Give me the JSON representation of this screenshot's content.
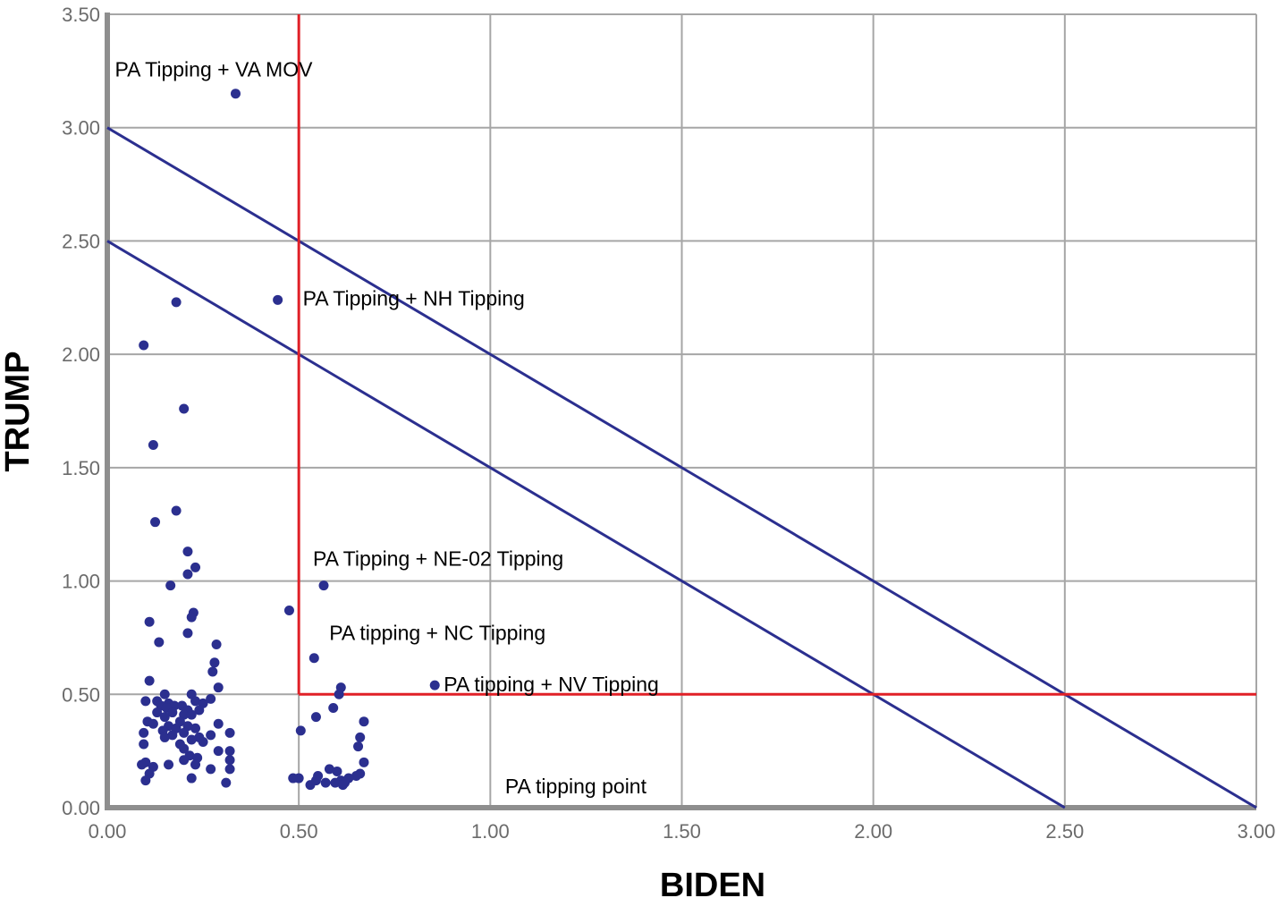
{
  "chart_data": {
    "type": "scatter",
    "xlabel": "BIDEN",
    "ylabel": "TRUMP",
    "xlim": [
      0,
      3
    ],
    "ylim": [
      0,
      3.5
    ],
    "grid": true,
    "x_ticks": [
      "0.00",
      "0.50",
      "1.00",
      "1.50",
      "2.00",
      "2.50",
      "3.00"
    ],
    "y_ticks": [
      "0.00",
      "0.50",
      "1.00",
      "1.50",
      "2.00",
      "2.50",
      "3.00",
      "3.50"
    ],
    "colors": {
      "points": "#2b2f8f",
      "diagonals": "#2b2f8f",
      "thresholds": "#e02027",
      "grid": "#a6a6a6",
      "axis": "#8e8e8e"
    },
    "threshold_lines": [
      {
        "orientation": "vertical",
        "x": 0.5,
        "y_range": [
          0.5,
          3.5
        ]
      },
      {
        "orientation": "horizontal",
        "y": 0.5,
        "x_range": [
          0.5,
          3.0
        ]
      }
    ],
    "diagonal_lines": [
      {
        "from": [
          0,
          3.0
        ],
        "to": [
          3.0,
          0
        ]
      },
      {
        "from": [
          0,
          2.5
        ],
        "to": [
          2.5,
          0
        ]
      }
    ],
    "annotations": [
      {
        "text": "PA Tipping + VA MOV",
        "x": 0.335,
        "y": 3.15
      },
      {
        "text": "PA Tipping + NH Tipping",
        "x": 0.445,
        "y": 2.24
      },
      {
        "text": "PA Tipping + NE-02 Tipping",
        "x": 0.565,
        "y": 0.98
      },
      {
        "text": "PA tipping + NC Tipping",
        "x": 0.54,
        "y": 0.66
      },
      {
        "text": "PA tipping + NV Tipping",
        "x": 0.855,
        "y": 0.54
      },
      {
        "text": "PA tipping point",
        "x": 1.23,
        "y": 0.21
      }
    ],
    "points": [
      [
        0.335,
        3.15
      ],
      [
        0.18,
        2.23
      ],
      [
        0.445,
        2.24
      ],
      [
        0.095,
        2.04
      ],
      [
        0.2,
        1.76
      ],
      [
        0.12,
        1.6
      ],
      [
        0.18,
        1.31
      ],
      [
        0.125,
        1.26
      ],
      [
        0.21,
        1.13
      ],
      [
        0.23,
        1.06
      ],
      [
        0.21,
        1.03
      ],
      [
        0.165,
        0.98
      ],
      [
        0.565,
        0.98
      ],
      [
        0.475,
        0.87
      ],
      [
        0.225,
        0.86
      ],
      [
        0.22,
        0.84
      ],
      [
        0.11,
        0.82
      ],
      [
        0.21,
        0.77
      ],
      [
        0.135,
        0.73
      ],
      [
        0.285,
        0.72
      ],
      [
        0.54,
        0.66
      ],
      [
        0.28,
        0.64
      ],
      [
        0.275,
        0.6
      ],
      [
        0.11,
        0.56
      ],
      [
        0.855,
        0.54
      ],
      [
        0.61,
        0.53
      ],
      [
        0.29,
        0.53
      ],
      [
        0.15,
        0.5
      ],
      [
        0.22,
        0.5
      ],
      [
        0.605,
        0.5
      ],
      [
        0.27,
        0.48
      ],
      [
        0.1,
        0.47
      ],
      [
        0.13,
        0.47
      ],
      [
        0.16,
        0.46
      ],
      [
        0.23,
        0.47
      ],
      [
        0.25,
        0.46
      ],
      [
        0.14,
        0.45
      ],
      [
        0.175,
        0.45
      ],
      [
        0.195,
        0.45
      ],
      [
        0.155,
        0.44
      ],
      [
        0.59,
        0.44
      ],
      [
        0.21,
        0.43
      ],
      [
        0.24,
        0.43
      ],
      [
        0.13,
        0.42
      ],
      [
        0.17,
        0.42
      ],
      [
        0.2,
        0.41
      ],
      [
        0.22,
        0.41
      ],
      [
        0.15,
        0.4
      ],
      [
        0.545,
        0.4
      ],
      [
        0.105,
        0.38
      ],
      [
        0.19,
        0.38
      ],
      [
        0.67,
        0.38
      ],
      [
        0.12,
        0.37
      ],
      [
        0.29,
        0.37
      ],
      [
        0.16,
        0.36
      ],
      [
        0.21,
        0.36
      ],
      [
        0.18,
        0.35
      ],
      [
        0.23,
        0.35
      ],
      [
        0.505,
        0.34
      ],
      [
        0.145,
        0.34
      ],
      [
        0.32,
        0.33
      ],
      [
        0.095,
        0.33
      ],
      [
        0.2,
        0.33
      ],
      [
        0.27,
        0.32
      ],
      [
        0.17,
        0.32
      ],
      [
        0.24,
        0.31
      ],
      [
        0.15,
        0.31
      ],
      [
        0.66,
        0.31
      ],
      [
        0.22,
        0.3
      ],
      [
        0.25,
        0.29
      ],
      [
        0.095,
        0.28
      ],
      [
        0.19,
        0.28
      ],
      [
        0.655,
        0.27
      ],
      [
        0.2,
        0.26
      ],
      [
        0.29,
        0.25
      ],
      [
        0.32,
        0.25
      ],
      [
        0.215,
        0.23
      ],
      [
        0.235,
        0.22
      ],
      [
        0.2,
        0.21
      ],
      [
        0.32,
        0.21
      ],
      [
        0.1,
        0.2
      ],
      [
        0.67,
        0.2
      ],
      [
        0.09,
        0.19
      ],
      [
        0.16,
        0.19
      ],
      [
        0.23,
        0.19
      ],
      [
        0.12,
        0.18
      ],
      [
        0.27,
        0.17
      ],
      [
        0.32,
        0.17
      ],
      [
        0.58,
        0.17
      ],
      [
        0.6,
        0.16
      ],
      [
        0.11,
        0.15
      ],
      [
        0.66,
        0.15
      ],
      [
        0.55,
        0.14
      ],
      [
        0.65,
        0.14
      ],
      [
        0.485,
        0.13
      ],
      [
        0.22,
        0.13
      ],
      [
        0.5,
        0.13
      ],
      [
        0.63,
        0.13
      ],
      [
        0.1,
        0.12
      ],
      [
        0.545,
        0.12
      ],
      [
        0.61,
        0.12
      ],
      [
        0.57,
        0.11
      ],
      [
        0.62,
        0.11
      ],
      [
        0.31,
        0.11
      ],
      [
        0.595,
        0.11
      ],
      [
        0.53,
        0.1
      ],
      [
        0.615,
        0.1
      ]
    ]
  }
}
